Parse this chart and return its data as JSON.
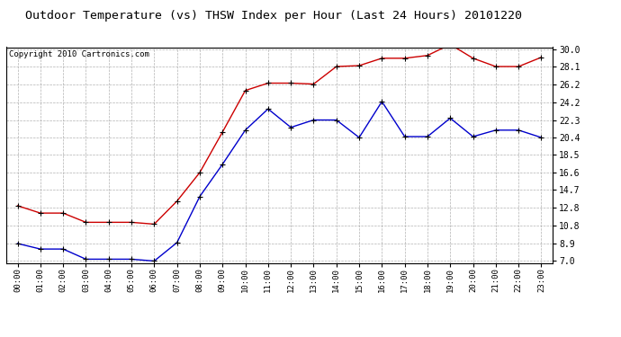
{
  "title": "Outdoor Temperature (vs) THSW Index per Hour (Last 24 Hours) 20101220",
  "copyright": "Copyright 2010 Cartronics.com",
  "hours": [
    "00:00",
    "01:00",
    "02:00",
    "03:00",
    "04:00",
    "05:00",
    "06:00",
    "07:00",
    "08:00",
    "09:00",
    "10:00",
    "11:00",
    "12:00",
    "13:00",
    "14:00",
    "15:00",
    "16:00",
    "17:00",
    "18:00",
    "19:00",
    "20:00",
    "21:00",
    "22:00",
    "23:00"
  ],
  "red_temp": [
    13.0,
    12.2,
    12.2,
    11.2,
    11.2,
    11.2,
    11.0,
    13.5,
    16.6,
    21.0,
    25.5,
    26.3,
    26.3,
    26.2,
    28.1,
    28.2,
    29.0,
    29.0,
    29.3,
    30.5,
    29.0,
    28.1,
    28.1,
    29.1
  ],
  "blue_thsw": [
    8.9,
    8.3,
    8.3,
    7.2,
    7.2,
    7.2,
    7.0,
    9.0,
    14.0,
    17.5,
    21.2,
    23.5,
    21.5,
    22.3,
    22.3,
    20.4,
    24.3,
    20.5,
    20.5,
    22.5,
    20.5,
    21.2,
    21.2,
    20.4
  ],
  "yticks": [
    7.0,
    8.9,
    10.8,
    12.8,
    14.7,
    16.6,
    18.5,
    20.4,
    22.3,
    24.2,
    26.2,
    28.1,
    30.0
  ],
  "ymin": 7.0,
  "ymax": 30.0,
  "red_color": "#cc0000",
  "blue_color": "#0000cc",
  "bg_color": "#ffffff",
  "grid_color": "#aaaaaa",
  "title_fontsize": 9.5,
  "copyright_fontsize": 6.5
}
